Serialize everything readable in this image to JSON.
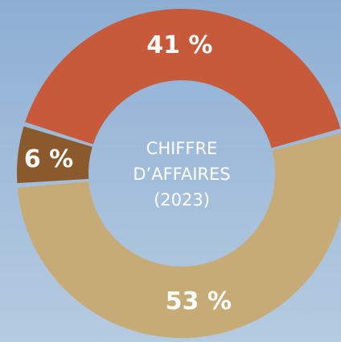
{
  "chart_data": {
    "type": "donut",
    "title_lines": [
      "CHIFFRE",
      "D’AFFAIRES",
      "(2023)"
    ],
    "categories": [
      null,
      null,
      null
    ],
    "values": [
      53,
      6,
      41
    ],
    "value_labels": [
      "53 %",
      "6 %",
      "41 %"
    ],
    "colors": [
      "#c6ab77",
      "#8b5a2c",
      "#c65a3b"
    ],
    "start_angle": 75
  }
}
